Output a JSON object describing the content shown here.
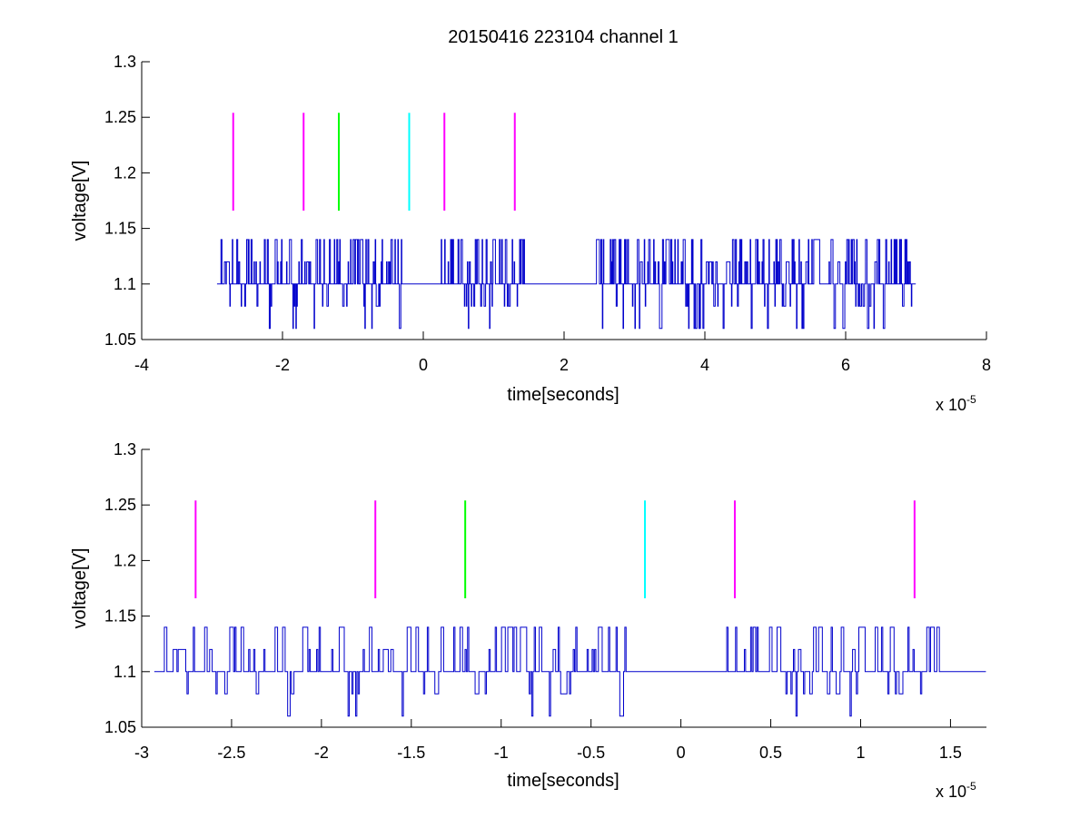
{
  "figure": {
    "title": "20150416 223104 channel 1"
  },
  "chart_data": [
    {
      "type": "line",
      "title": "20150416 223104 channel 1",
      "xlabel": "time[seconds]",
      "ylabel": "voltage[V]",
      "x_exponent_label": "x 10",
      "x_exponent_power": "-5",
      "xlim": [
        -4,
        8
      ],
      "ylim": [
        1.05,
        1.3
      ],
      "xticks": [
        -4,
        -2,
        0,
        2,
        4,
        6,
        8
      ],
      "xtick_labels": [
        "-4",
        "-2",
        "0",
        "2",
        "4",
        "6",
        "8"
      ],
      "yticks": [
        1.05,
        1.1,
        1.15,
        1.2,
        1.25,
        1.3
      ],
      "ytick_labels": [
        "1.05",
        "1.1",
        "1.15",
        "1.2",
        "1.25",
        "1.3"
      ],
      "grid": false,
      "signal": {
        "color": "#0000cc",
        "x_start": -2.93,
        "x_end": 7.0,
        "baseline": 1.1,
        "levels": [
          1.06,
          1.08,
          1.1,
          1.12,
          1.14
        ],
        "quiet_intervals": [
          [
            -0.3,
            0.25
          ],
          [
            1.45,
            2.45
          ]
        ]
      },
      "markers": [
        {
          "x": -2.7,
          "y_from": 1.166,
          "y_to": 1.254,
          "color": "#ff00ff"
        },
        {
          "x": -1.7,
          "y_from": 1.166,
          "y_to": 1.254,
          "color": "#ff00ff"
        },
        {
          "x": -1.2,
          "y_from": 1.166,
          "y_to": 1.254,
          "color": "#00ff00"
        },
        {
          "x": -0.2,
          "y_from": 1.166,
          "y_to": 1.254,
          "color": "#00ffff"
        },
        {
          "x": 0.3,
          "y_from": 1.166,
          "y_to": 1.254,
          "color": "#ff00ff"
        },
        {
          "x": 1.3,
          "y_from": 1.166,
          "y_to": 1.254,
          "color": "#ff00ff"
        }
      ]
    },
    {
      "type": "line",
      "title": "",
      "xlabel": "time[seconds]",
      "ylabel": "voltage[V]",
      "x_exponent_label": "x 10",
      "x_exponent_power": "-5",
      "xlim": [
        -3.0,
        1.7
      ],
      "ylim": [
        1.05,
        1.3
      ],
      "xticks": [
        -3,
        -2.5,
        -2,
        -1.5,
        -1,
        -0.5,
        0,
        0.5,
        1,
        1.5
      ],
      "xtick_labels": [
        "-3",
        "-2.5",
        "-2",
        "-1.5",
        "-1",
        "-0.5",
        "0",
        "0.5",
        "1",
        "1.5"
      ],
      "yticks": [
        1.05,
        1.1,
        1.15,
        1.2,
        1.25,
        1.3
      ],
      "ytick_labels": [
        "1.05",
        "1.1",
        "1.15",
        "1.2",
        "1.25",
        "1.3"
      ],
      "grid": false,
      "signal": {
        "color": "#0000cc",
        "x_start": -2.93,
        "x_end": 1.7,
        "baseline": 1.1,
        "levels": [
          1.06,
          1.08,
          1.1,
          1.12,
          1.14
        ],
        "quiet_intervals": [
          [
            -0.3,
            0.25
          ]
        ]
      },
      "markers": [
        {
          "x": -2.7,
          "y_from": 1.166,
          "y_to": 1.254,
          "color": "#ff00ff"
        },
        {
          "x": -1.7,
          "y_from": 1.166,
          "y_to": 1.254,
          "color": "#ff00ff"
        },
        {
          "x": -1.2,
          "y_from": 1.166,
          "y_to": 1.254,
          "color": "#00ff00"
        },
        {
          "x": -0.2,
          "y_from": 1.166,
          "y_to": 1.254,
          "color": "#00ffff"
        },
        {
          "x": 0.3,
          "y_from": 1.166,
          "y_to": 1.254,
          "color": "#ff00ff"
        },
        {
          "x": 1.3,
          "y_from": 1.166,
          "y_to": 1.254,
          "color": "#ff00ff"
        }
      ]
    }
  ]
}
